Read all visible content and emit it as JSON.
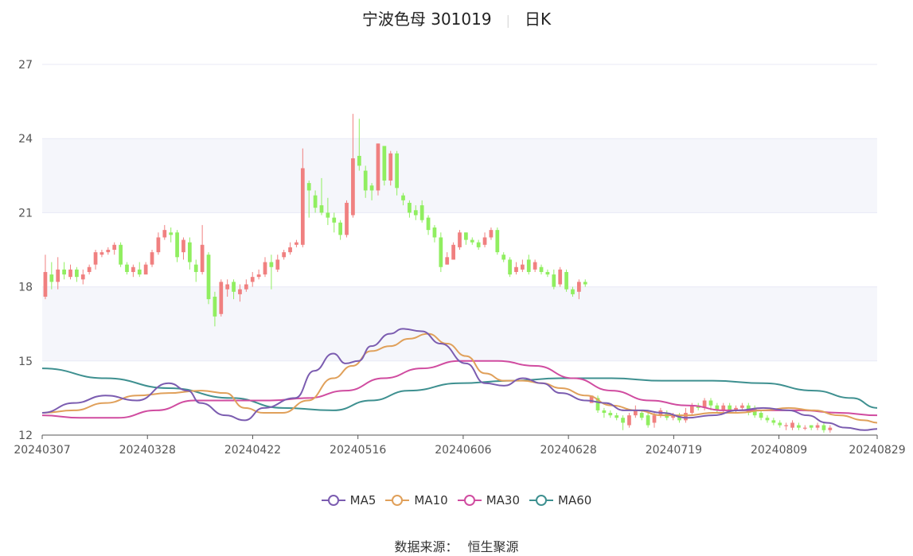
{
  "title": {
    "name": "宁波色母 301019",
    "period": "日K"
  },
  "source": {
    "label": "数据来源：",
    "value": "恒生聚源"
  },
  "colors": {
    "up": "#f08080",
    "down": "#90ee60",
    "MA5": "#7b5cb0",
    "MA10": "#e0a05a",
    "MA30": "#d04ca0",
    "MA60": "#3e9090",
    "grid": "#e8eaf6",
    "band": "#f5f6fb"
  },
  "chart_data": {
    "type": "candlestick",
    "title": "宁波色母 301019",
    "y_ticks": [
      12,
      15,
      18,
      21,
      24,
      27
    ],
    "ylim": [
      12,
      27
    ],
    "x_tick_labels": [
      "20240307",
      "20240328",
      "20240422",
      "20240516",
      "20240606",
      "20240628",
      "20240719",
      "20240809",
      "20240829"
    ],
    "x_tick_index": [
      0,
      15,
      30,
      45,
      60,
      75,
      90,
      105,
      119
    ],
    "legend": [
      "MA5",
      "MA10",
      "MA30",
      "MA60"
    ],
    "candles": [
      [
        17.6,
        18.6,
        19.3,
        17.5
      ],
      [
        18.5,
        18.2,
        19.0,
        17.9
      ],
      [
        18.2,
        18.7,
        19.2,
        17.9
      ],
      [
        18.7,
        18.5,
        19.0,
        18.3
      ],
      [
        18.4,
        18.7,
        18.9,
        18.3
      ],
      [
        18.7,
        18.4,
        18.8,
        18.2
      ],
      [
        18.3,
        18.5,
        18.7,
        18.1
      ],
      [
        18.6,
        18.8,
        18.9,
        18.5
      ],
      [
        18.9,
        19.4,
        19.5,
        18.7
      ],
      [
        19.3,
        19.4,
        19.5,
        19.2
      ],
      [
        19.4,
        19.5,
        19.6,
        19.3
      ],
      [
        19.5,
        19.7,
        19.8,
        19.3
      ],
      [
        19.7,
        18.9,
        19.8,
        18.8
      ],
      [
        18.9,
        18.6,
        19.0,
        18.5
      ],
      [
        18.6,
        18.8,
        18.9,
        18.4
      ],
      [
        18.7,
        18.5,
        19.0,
        18.4
      ],
      [
        18.5,
        18.9,
        19.0,
        18.5
      ],
      [
        18.9,
        19.4,
        19.5,
        18.8
      ],
      [
        19.4,
        20.0,
        20.2,
        19.3
      ],
      [
        20.0,
        20.3,
        20.5,
        19.9
      ],
      [
        20.2,
        20.1,
        20.4,
        19.8
      ],
      [
        20.2,
        19.2,
        20.3,
        19.0
      ],
      [
        19.4,
        19.9,
        20.0,
        19.1
      ],
      [
        19.8,
        19.0,
        20.0,
        18.7
      ],
      [
        18.9,
        18.6,
        19.1,
        18.2
      ],
      [
        18.6,
        19.7,
        20.5,
        18.5
      ],
      [
        19.3,
        17.5,
        19.4,
        17.3
      ],
      [
        17.6,
        16.8,
        17.8,
        16.4
      ],
      [
        16.9,
        18.2,
        18.3,
        16.8
      ],
      [
        17.9,
        18.1,
        18.3,
        17.6
      ],
      [
        18.2,
        17.8,
        18.3,
        17.5
      ],
      [
        17.7,
        17.9,
        18.1,
        17.4
      ],
      [
        17.9,
        18.1,
        18.3,
        17.8
      ],
      [
        18.2,
        18.4,
        18.6,
        18.0
      ],
      [
        18.4,
        18.5,
        18.7,
        18.3
      ],
      [
        18.5,
        19.0,
        19.2,
        18.4
      ],
      [
        19.0,
        18.8,
        19.3,
        17.9
      ],
      [
        18.7,
        19.1,
        19.3,
        18.6
      ],
      [
        19.2,
        19.4,
        19.5,
        19.1
      ],
      [
        19.4,
        19.6,
        19.8,
        19.3
      ],
      [
        19.7,
        19.8,
        19.9,
        19.6
      ],
      [
        19.7,
        22.8,
        23.6,
        19.6
      ],
      [
        22.2,
        21.9,
        22.3,
        20.8
      ],
      [
        21.7,
        21.2,
        21.9,
        21.0
      ],
      [
        21.3,
        21.0,
        22.4,
        20.9
      ],
      [
        21.0,
        20.8,
        21.6,
        20.5
      ],
      [
        20.8,
        20.6,
        21.0,
        20.2
      ],
      [
        20.6,
        20.1,
        20.7,
        19.9
      ],
      [
        20.1,
        21.4,
        21.5,
        20.0
      ],
      [
        20.9,
        23.2,
        25.0,
        20.8
      ],
      [
        23.3,
        22.9,
        24.8,
        22.7
      ],
      [
        22.7,
        21.9,
        22.9,
        21.6
      ],
      [
        22.1,
        21.9,
        22.2,
        21.5
      ],
      [
        21.9,
        23.8,
        23.8,
        21.7
      ],
      [
        23.7,
        22.3,
        23.7,
        22.1
      ],
      [
        22.3,
        23.4,
        23.5,
        22.1
      ],
      [
        23.4,
        22.0,
        23.5,
        21.7
      ],
      [
        21.7,
        21.5,
        21.8,
        21.3
      ],
      [
        21.4,
        21.0,
        21.5,
        20.8
      ],
      [
        21.1,
        20.9,
        21.3,
        20.7
      ],
      [
        21.3,
        20.7,
        21.5,
        20.6
      ],
      [
        20.8,
        20.3,
        20.9,
        20.1
      ],
      [
        20.4,
        20.0,
        20.5,
        19.8
      ],
      [
        20.0,
        18.8,
        20.2,
        18.6
      ],
      [
        18.9,
        19.2,
        19.4,
        18.9
      ],
      [
        19.1,
        19.7,
        19.8,
        19.1
      ],
      [
        19.6,
        20.2,
        20.3,
        19.5
      ],
      [
        20.2,
        19.9,
        20.2,
        19.7
      ],
      [
        19.9,
        19.8,
        20.0,
        19.7
      ],
      [
        19.8,
        19.6,
        19.9,
        19.5
      ],
      [
        19.7,
        20.0,
        20.2,
        19.6
      ],
      [
        20.0,
        20.3,
        20.4,
        19.9
      ],
      [
        20.3,
        19.4,
        20.4,
        19.3
      ],
      [
        19.3,
        19.1,
        19.4,
        19.0
      ],
      [
        19.1,
        18.5,
        19.2,
        18.4
      ],
      [
        18.6,
        18.8,
        19.0,
        18.5
      ],
      [
        18.7,
        18.9,
        19.1,
        18.6
      ],
      [
        19.1,
        18.6,
        19.3,
        18.5
      ],
      [
        18.7,
        19.0,
        19.1,
        18.6
      ],
      [
        18.8,
        18.6,
        18.9,
        18.5
      ],
      [
        18.6,
        18.5,
        18.7,
        18.4
      ],
      [
        18.5,
        18.0,
        18.7,
        17.9
      ],
      [
        18.1,
        18.7,
        18.8,
        18.0
      ],
      [
        18.6,
        17.9,
        18.7,
        17.8
      ],
      [
        17.9,
        17.7,
        18.0,
        17.6
      ],
      [
        17.8,
        18.2,
        18.3,
        17.5
      ],
      [
        18.2,
        18.1,
        18.3,
        18.0
      ],
      [
        13.3,
        13.6,
        13.6,
        13.3
      ],
      [
        13.5,
        13.0,
        13.6,
        12.9
      ],
      [
        13.0,
        12.9,
        13.1,
        12.7
      ],
      [
        12.9,
        12.8,
        13.0,
        12.7
      ],
      [
        12.8,
        12.7,
        12.9,
        12.6
      ],
      [
        12.7,
        12.5,
        12.8,
        12.2
      ],
      [
        12.4,
        12.8,
        12.9,
        12.3
      ],
      [
        12.8,
        13.0,
        13.2,
        12.7
      ],
      [
        12.9,
        12.7,
        13.0,
        12.6
      ],
      [
        12.8,
        12.4,
        12.9,
        12.3
      ],
      [
        12.5,
        12.8,
        12.9,
        12.3
      ],
      [
        12.8,
        13.0,
        13.1,
        12.7
      ],
      [
        12.9,
        12.7,
        13.0,
        12.6
      ],
      [
        12.7,
        12.8,
        12.9,
        12.6
      ],
      [
        12.8,
        12.6,
        12.9,
        12.5
      ],
      [
        12.6,
        12.9,
        13.1,
        12.5
      ],
      [
        12.9,
        13.2,
        13.3,
        12.8
      ],
      [
        13.2,
        13.1,
        13.3,
        13.0
      ],
      [
        13.1,
        13.4,
        13.5,
        13.0
      ],
      [
        13.4,
        13.2,
        13.5,
        13.0
      ],
      [
        13.2,
        13.0,
        13.3,
        12.9
      ],
      [
        13.0,
        13.2,
        13.3,
        12.9
      ],
      [
        13.2,
        13.0,
        13.3,
        12.9
      ],
      [
        13.0,
        13.1,
        13.2,
        12.9
      ],
      [
        13.1,
        13.2,
        13.3,
        13.0
      ],
      [
        13.2,
        12.9,
        13.3,
        12.8
      ],
      [
        13.1,
        12.8,
        13.2,
        12.7
      ],
      [
        12.9,
        12.7,
        13.0,
        12.6
      ],
      [
        12.7,
        12.6,
        12.8,
        12.5
      ],
      [
        12.6,
        12.5,
        12.7,
        12.4
      ],
      [
        12.5,
        12.4,
        12.6,
        12.3
      ],
      [
        12.4,
        12.4,
        12.5,
        12.2
      ],
      [
        12.3,
        12.5,
        12.6,
        12.2
      ],
      [
        12.4,
        12.3,
        12.5,
        12.2
      ],
      [
        12.3,
        12.3,
        12.4,
        12.2
      ],
      [
        12.4,
        12.3,
        12.4,
        12.2
      ],
      [
        12.3,
        12.4,
        12.5,
        12.2
      ],
      [
        12.4,
        12.2,
        12.5,
        12.1
      ],
      [
        12.2,
        12.3,
        12.4,
        12.1
      ]
    ],
    "ma": {
      "MA5": [
        [
          0,
          12.9
        ],
        [
          5,
          13.3
        ],
        [
          10,
          13.6
        ],
        [
          15,
          13.4
        ],
        [
          20,
          14.1
        ],
        [
          23,
          13.8
        ],
        [
          25,
          13.3
        ],
        [
          29,
          12.8
        ],
        [
          32,
          12.6
        ],
        [
          35,
          13.1
        ],
        [
          40,
          13.5
        ],
        [
          43,
          14.6
        ],
        [
          46,
          15.3
        ],
        [
          48,
          14.9
        ],
        [
          50,
          15.0
        ],
        [
          52,
          15.6
        ],
        [
          55,
          16.1
        ],
        [
          57,
          16.3
        ],
        [
          60,
          16.2
        ],
        [
          63,
          15.7
        ],
        [
          67,
          14.9
        ],
        [
          70,
          14.1
        ],
        [
          73,
          14.0
        ],
        [
          76,
          14.3
        ],
        [
          79,
          14.1
        ],
        [
          82,
          13.7
        ],
        [
          86,
          13.4
        ],
        [
          89,
          13.3
        ],
        [
          92,
          13.0
        ],
        [
          95,
          13.0
        ],
        [
          98,
          12.9
        ],
        [
          102,
          12.7
        ],
        [
          106,
          12.8
        ],
        [
          110,
          13.0
        ],
        [
          114,
          13.1
        ],
        [
          118,
          13.0
        ],
        [
          121,
          12.8
        ],
        [
          124,
          12.5
        ],
        [
          127,
          12.3
        ],
        [
          130,
          12.2
        ],
        [
          132,
          12.25
        ]
      ],
      "MA10": [
        [
          0,
          12.9
        ],
        [
          5,
          13.0
        ],
        [
          10,
          13.3
        ],
        [
          15,
          13.6
        ],
        [
          20,
          13.7
        ],
        [
          25,
          13.8
        ],
        [
          29,
          13.7
        ],
        [
          32,
          13.1
        ],
        [
          35,
          12.9
        ],
        [
          38,
          12.9
        ],
        [
          42,
          13.4
        ],
        [
          46,
          14.3
        ],
        [
          49,
          14.8
        ],
        [
          52,
          15.4
        ],
        [
          55,
          15.6
        ],
        [
          58,
          15.9
        ],
        [
          61,
          16.1
        ],
        [
          64,
          15.7
        ],
        [
          67,
          15.2
        ],
        [
          70,
          14.5
        ],
        [
          73,
          14.2
        ],
        [
          76,
          14.2
        ],
        [
          79,
          14.1
        ],
        [
          82,
          13.9
        ],
        [
          86,
          13.6
        ],
        [
          90,
          13.2
        ],
        [
          94,
          13.0
        ],
        [
          98,
          12.8
        ],
        [
          102,
          12.8
        ],
        [
          106,
          12.9
        ],
        [
          110,
          12.9
        ],
        [
          114,
          13.0
        ],
        [
          118,
          13.1
        ],
        [
          122,
          13.0
        ],
        [
          126,
          12.8
        ],
        [
          130,
          12.6
        ],
        [
          132,
          12.5
        ]
      ],
      "MA30": [
        [
          0,
          12.8
        ],
        [
          6,
          12.7
        ],
        [
          12,
          12.7
        ],
        [
          18,
          13.0
        ],
        [
          24,
          13.4
        ],
        [
          30,
          13.4
        ],
        [
          36,
          13.4
        ],
        [
          42,
          13.5
        ],
        [
          48,
          13.8
        ],
        [
          54,
          14.3
        ],
        [
          60,
          14.7
        ],
        [
          66,
          15.0
        ],
        [
          72,
          15.0
        ],
        [
          78,
          14.8
        ],
        [
          84,
          14.3
        ],
        [
          90,
          13.8
        ],
        [
          96,
          13.4
        ],
        [
          102,
          13.2
        ],
        [
          108,
          13.0
        ],
        [
          114,
          13.0
        ],
        [
          120,
          13.0
        ],
        [
          126,
          12.9
        ],
        [
          132,
          12.8
        ]
      ],
      "MA60": [
        [
          0,
          14.7
        ],
        [
          10,
          14.3
        ],
        [
          20,
          13.9
        ],
        [
          30,
          13.5
        ],
        [
          38,
          13.1
        ],
        [
          46,
          13.0
        ],
        [
          52,
          13.4
        ],
        [
          58,
          13.8
        ],
        [
          66,
          14.1
        ],
        [
          74,
          14.2
        ],
        [
          82,
          14.3
        ],
        [
          90,
          14.3
        ],
        [
          98,
          14.2
        ],
        [
          106,
          14.2
        ],
        [
          114,
          14.1
        ],
        [
          122,
          13.8
        ],
        [
          128,
          13.5
        ],
        [
          132,
          13.1
        ]
      ]
    }
  }
}
